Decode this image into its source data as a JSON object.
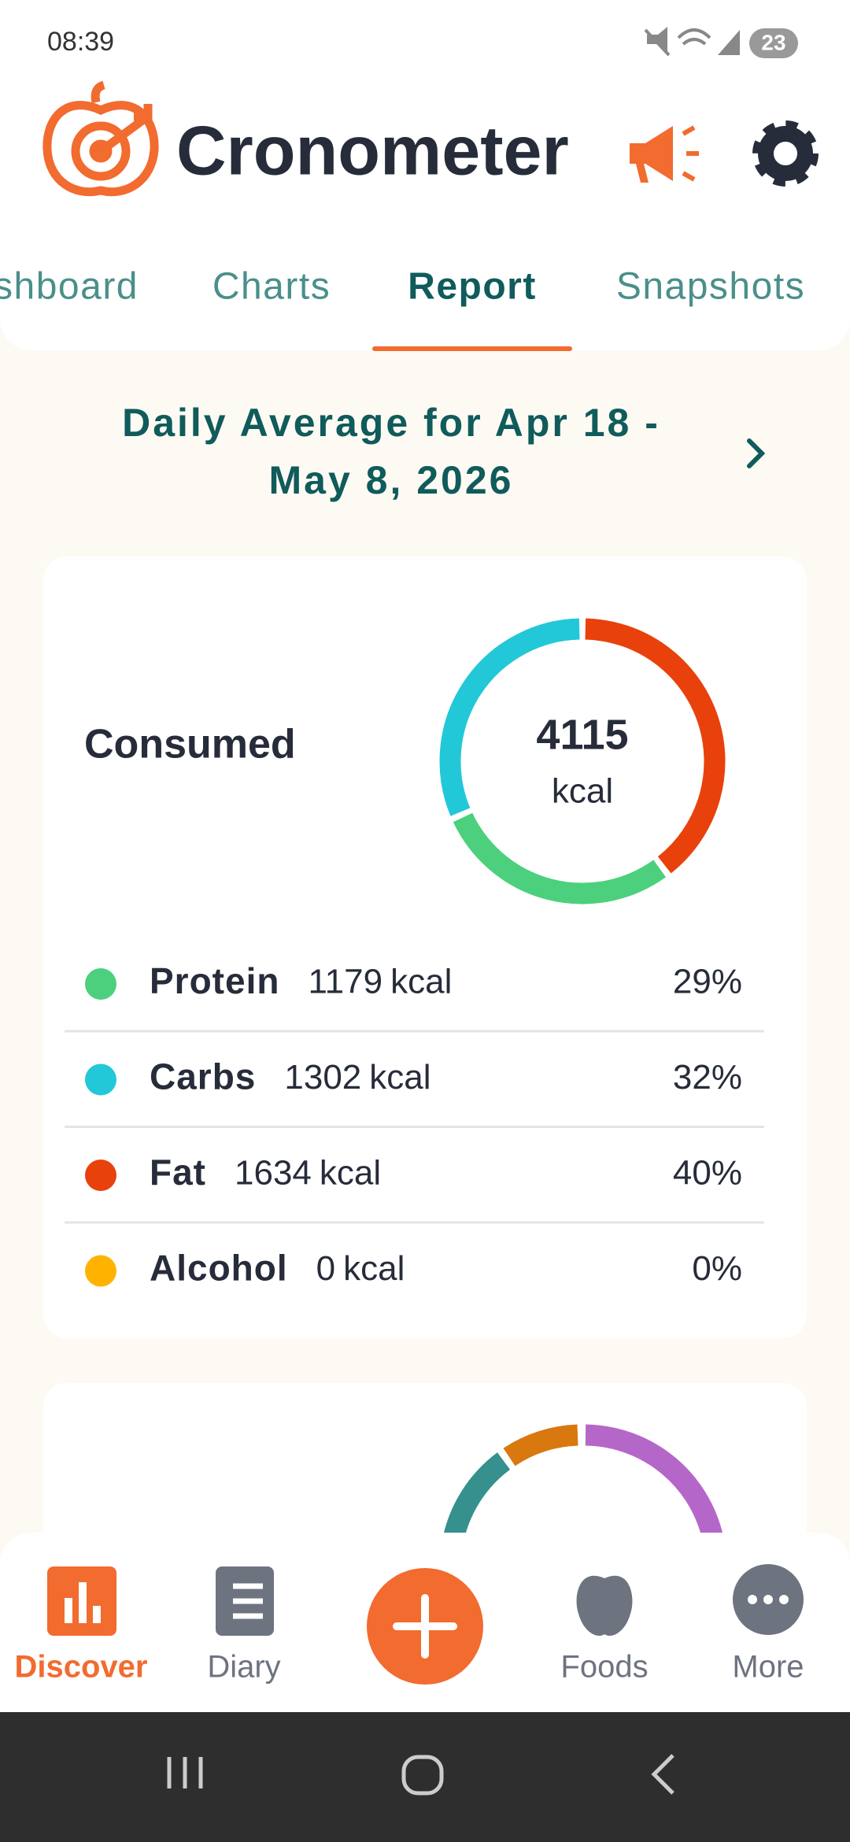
{
  "status_bar": {
    "time": "08:39",
    "battery": "23"
  },
  "header": {
    "app_name": "Cronometer"
  },
  "tabs": [
    "Dashboard",
    "Charts",
    "Report",
    "Snapshots"
  ],
  "report": {
    "title_line1": "Daily Average for Apr 18 -",
    "title_line2": "May 8, 2026"
  },
  "consumed": {
    "label": "Consumed",
    "total": 4115,
    "unit": "kcal",
    "rows": [
      {
        "name": "Protein",
        "kcal": 1179,
        "percent": "29%",
        "color": "#4cd07d"
      },
      {
        "name": "Carbs",
        "kcal": 1302,
        "percent": "32%",
        "color": "#22c8d8"
      },
      {
        "name": "Fat",
        "kcal": 1634,
        "percent": "40%",
        "color": "#e8410c"
      },
      {
        "name": "Alcohol",
        "kcal": 0,
        "percent": "0%",
        "color": "#ffb300"
      }
    ]
  },
  "nav": [
    "Discover",
    "Diary",
    "Foods",
    "More"
  ]
}
